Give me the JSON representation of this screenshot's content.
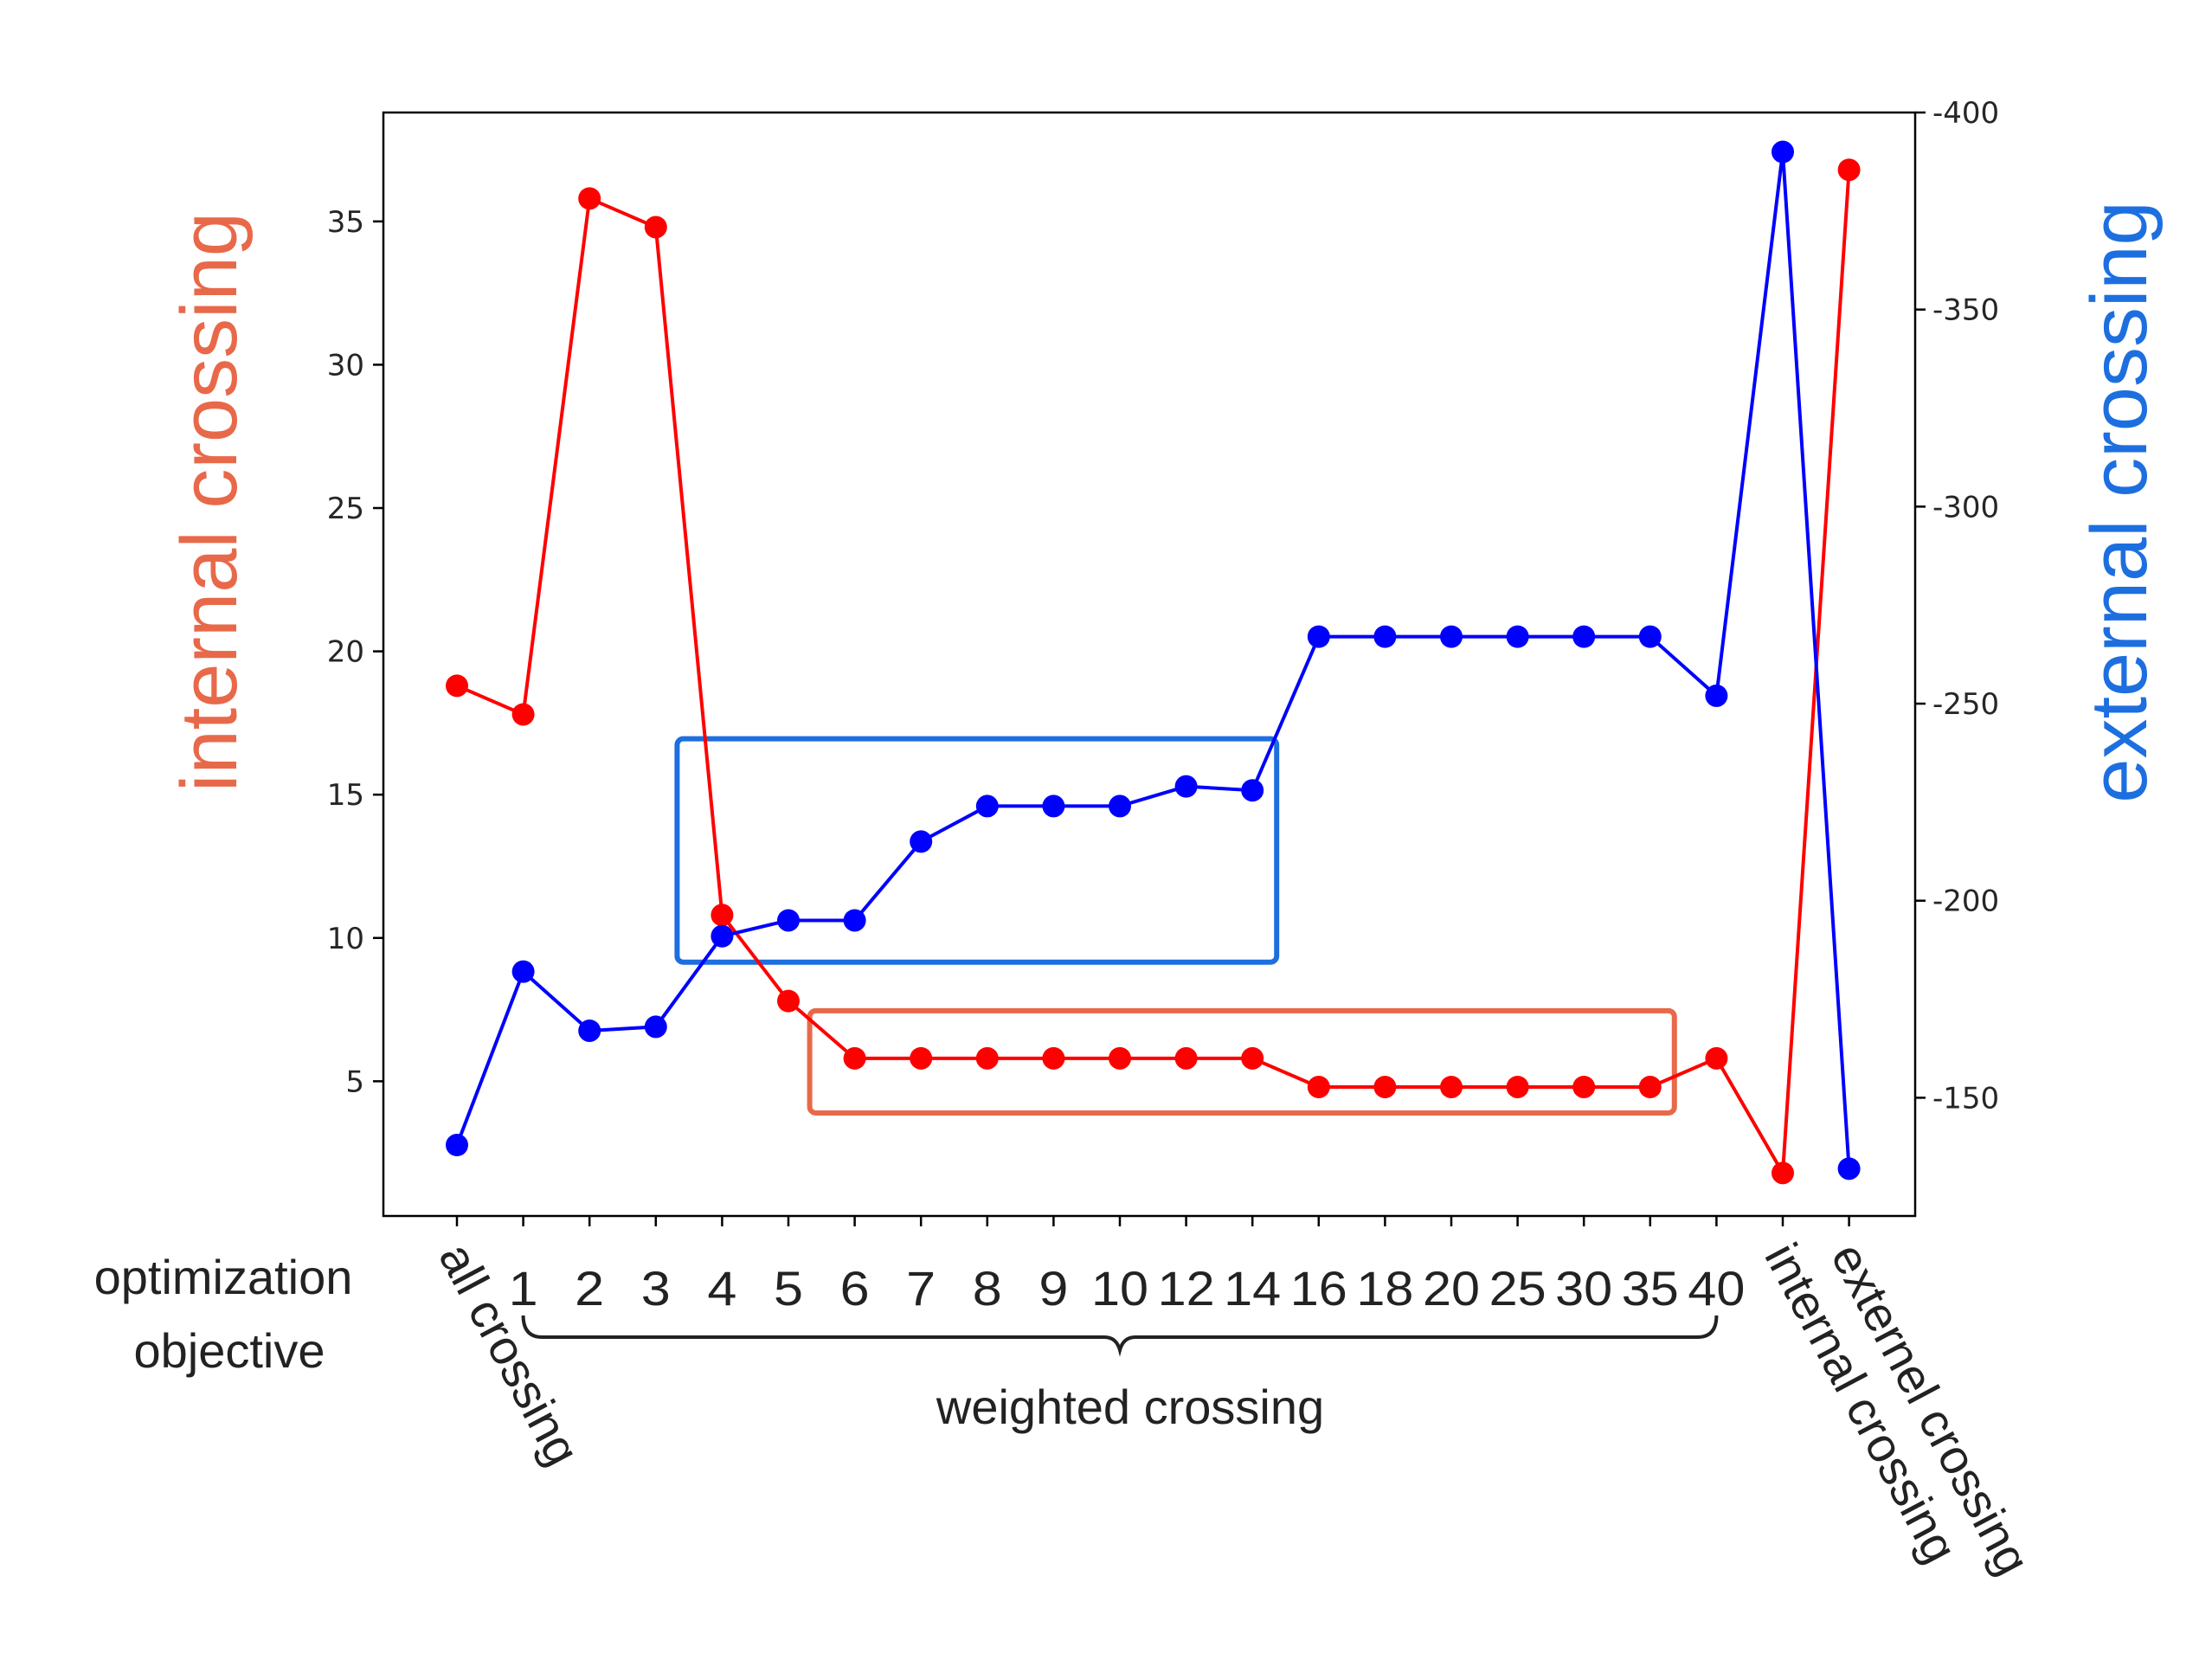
{
  "chart_data": {
    "type": "line",
    "categories": [
      "all crossing",
      "1",
      "2",
      "3",
      "4",
      "5",
      "6",
      "7",
      "8",
      "9",
      "10",
      "12",
      "14",
      "16",
      "18",
      "20",
      "25",
      "30",
      "35",
      "40",
      "internal crossing",
      "externel crossing"
    ],
    "series": [
      {
        "axis": "left",
        "color": "#ff0000",
        "values": [
          18.8,
          17.8,
          35.8,
          34.8,
          10.8,
          7.8,
          5.8,
          5.8,
          5.8,
          5.8,
          5.8,
          5.8,
          5.8,
          4.8,
          4.8,
          4.8,
          4.8,
          4.8,
          4.8,
          5.8,
          1.8,
          36.8
        ]
      },
      {
        "axis": "right",
        "color": "#0000ff",
        "values": [
          138,
          182,
          167,
          168,
          191,
          195,
          195,
          215,
          224,
          224,
          224,
          229,
          228,
          267,
          267,
          267,
          267,
          267,
          267,
          252,
          390,
          132
        ]
      }
    ],
    "ylabel": "internal crossing",
    "ylabel_color": "#e8694a",
    "y2label": "external crossing",
    "y2label_color": "#1d6fe0",
    "xlabel": "optimization objective",
    "xlabel_lines": [
      "optimization",
      "objective"
    ],
    "group_label": "weighted crossing",
    "y_ticks": [
      5,
      10,
      15,
      20,
      25,
      30,
      35
    ],
    "y2_ticks": [
      150,
      200,
      250,
      300,
      350,
      400
    ],
    "ylim": [
      0.3,
      38.8
    ],
    "y2lim": [
      120,
      400
    ],
    "grid": false,
    "highlight_boxes": [
      {
        "color": "#1d6fe0",
        "from_category": "4",
        "to_category": "14",
        "series": "external crossing"
      },
      {
        "color": "#e8694a",
        "from_category": "6",
        "to_category": "35",
        "series": "internal crossing"
      }
    ]
  }
}
